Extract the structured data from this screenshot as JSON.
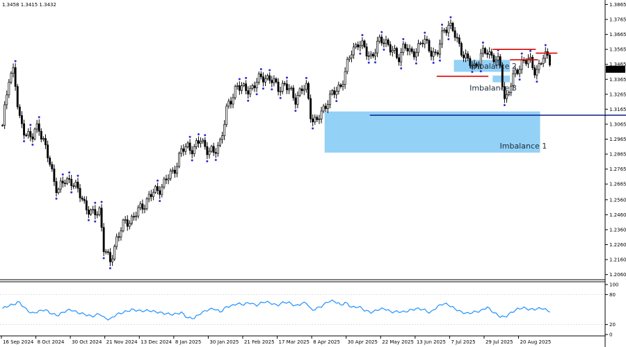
{
  "header": {
    "ohlc": "1.3458 1.3415 1.3432"
  },
  "chart_data": {
    "type": "candlestick",
    "instrument_ohlc": "1.3458 1.3415 1.3432",
    "price_axis": {
      "ticks": [
        "1.3865",
        "1.3765",
        "1.3665",
        "1.3565",
        "1.3465",
        "1.3365",
        "1.3265",
        "1.3165",
        "1.3065",
        "1.2965",
        "1.2865",
        "1.2765",
        "1.2665",
        "1.2560",
        "1.2460",
        "1.2360",
        "1.2260",
        "1.2160",
        "1.2060"
      ],
      "range": [
        1.2035,
        1.3895
      ],
      "current_price": "1.3432"
    },
    "time_axis": {
      "labels": [
        "16 Sep 2024",
        "8 Oct 2024",
        "30 Oct 2024",
        "21 Nov 2024",
        "13 Dec 2024",
        "8 Jan 2025",
        "30 Jan 2025",
        "21 Feb 2025",
        "17 Mar 2025",
        "8 Apr 2025",
        "30 Apr 2025",
        "22 May 2025",
        "13 Jun 2025",
        "7 Jul 2025",
        "29 Jul 2025",
        "20 Aug 2025"
      ],
      "bars_per_label": 16,
      "total_bars": 255
    },
    "close_path": [
      [
        0,
        1.304
      ],
      [
        8,
        1.339
      ],
      [
        14,
        1.343
      ],
      [
        20,
        1.31
      ],
      [
        28,
        1.302
      ],
      [
        36,
        1.296
      ],
      [
        44,
        1.307
      ],
      [
        52,
        1.292
      ],
      [
        60,
        1.276
      ],
      [
        68,
        1.262
      ],
      [
        76,
        1.268
      ],
      [
        84,
        1.27
      ],
      [
        92,
        1.262
      ],
      [
        100,
        1.255
      ],
      [
        110,
        1.245
      ],
      [
        120,
        1.25
      ],
      [
        124,
        1.225
      ],
      [
        132,
        1.213
      ],
      [
        140,
        1.23
      ],
      [
        150,
        1.24
      ],
      [
        160,
        1.244
      ],
      [
        170,
        1.25
      ],
      [
        180,
        1.258
      ],
      [
        190,
        1.262
      ],
      [
        200,
        1.268
      ],
      [
        210,
        1.275
      ],
      [
        220,
        1.288
      ],
      [
        228,
        1.292
      ],
      [
        236,
        1.29
      ],
      [
        244,
        1.296
      ],
      [
        252,
        1.29
      ],
      [
        260,
        1.286
      ],
      [
        268,
        1.296
      ],
      [
        276,
        1.316
      ],
      [
        282,
        1.323
      ],
      [
        288,
        1.334
      ],
      [
        296,
        1.329
      ],
      [
        304,
        1.33
      ],
      [
        312,
        1.334
      ],
      [
        322,
        1.339
      ],
      [
        330,
        1.336
      ],
      [
        338,
        1.331
      ],
      [
        346,
        1.333
      ],
      [
        354,
        1.328
      ],
      [
        360,
        1.324
      ],
      [
        368,
        1.329
      ],
      [
        374,
        1.331
      ],
      [
        380,
        1.311
      ],
      [
        386,
        1.307
      ],
      [
        394,
        1.316
      ],
      [
        400,
        1.323
      ],
      [
        408,
        1.327
      ],
      [
        416,
        1.333
      ],
      [
        422,
        1.342
      ],
      [
        430,
        1.356
      ],
      [
        438,
        1.362
      ],
      [
        446,
        1.355
      ],
      [
        454,
        1.352
      ],
      [
        462,
        1.36
      ],
      [
        470,
        1.364
      ],
      [
        478,
        1.356
      ],
      [
        486,
        1.35
      ],
      [
        494,
        1.36
      ],
      [
        502,
        1.352
      ],
      [
        510,
        1.358
      ],
      [
        518,
        1.362
      ],
      [
        526,
        1.357
      ],
      [
        534,
        1.351
      ],
      [
        542,
        1.369
      ],
      [
        548,
        1.374
      ],
      [
        556,
        1.366
      ],
      [
        564,
        1.357
      ],
      [
        572,
        1.348
      ],
      [
        580,
        1.345
      ],
      [
        588,
        1.352
      ],
      [
        596,
        1.355
      ],
      [
        604,
        1.352
      ],
      [
        612,
        1.345
      ],
      [
        618,
        1.322
      ],
      [
        624,
        1.332
      ],
      [
        632,
        1.341
      ],
      [
        640,
        1.35
      ],
      [
        648,
        1.348
      ],
      [
        656,
        1.342
      ],
      [
        664,
        1.35
      ],
      [
        672,
        1.352
      ],
      [
        678,
        1.342
      ]
    ],
    "rsi": {
      "ticks": [
        "100",
        "80",
        "20",
        "0"
      ],
      "levels": [
        80,
        20
      ],
      "path": [
        [
          0,
          52
        ],
        [
          8,
          58
        ],
        [
          14,
          60
        ],
        [
          20,
          66
        ],
        [
          28,
          52
        ],
        [
          36,
          42
        ],
        [
          44,
          46
        ],
        [
          52,
          50
        ],
        [
          60,
          42
        ],
        [
          68,
          38
        ],
        [
          76,
          46
        ],
        [
          84,
          50
        ],
        [
          92,
          44
        ],
        [
          100,
          41
        ],
        [
          110,
          36
        ],
        [
          120,
          42
        ],
        [
          124,
          34
        ],
        [
          132,
          30
        ],
        [
          140,
          40
        ],
        [
          150,
          45
        ],
        [
          160,
          50
        ],
        [
          170,
          47
        ],
        [
          180,
          48
        ],
        [
          190,
          45
        ],
        [
          200,
          42
        ],
        [
          210,
          40
        ],
        [
          220,
          44
        ],
        [
          228,
          33
        ],
        [
          236,
          33
        ],
        [
          244,
          43
        ],
        [
          252,
          49
        ],
        [
          260,
          52
        ],
        [
          268,
          45
        ],
        [
          276,
          56
        ],
        [
          282,
          57
        ],
        [
          288,
          62
        ],
        [
          296,
          60
        ],
        [
          304,
          64
        ],
        [
          312,
          58
        ],
        [
          322,
          66
        ],
        [
          330,
          63
        ],
        [
          338,
          58
        ],
        [
          346,
          65
        ],
        [
          354,
          63
        ],
        [
          360,
          57
        ],
        [
          368,
          62
        ],
        [
          374,
          64
        ],
        [
          380,
          48
        ],
        [
          386,
          52
        ],
        [
          394,
          58
        ],
        [
          400,
          66
        ],
        [
          408,
          67
        ],
        [
          416,
          59
        ],
        [
          422,
          64
        ],
        [
          430,
          54
        ],
        [
          438,
          56
        ],
        [
          446,
          48
        ],
        [
          454,
          44
        ],
        [
          462,
          50
        ],
        [
          470,
          52
        ],
        [
          478,
          45
        ],
        [
          486,
          46
        ],
        [
          494,
          45
        ],
        [
          502,
          49
        ],
        [
          510,
          52
        ],
        [
          518,
          50
        ],
        [
          526,
          43
        ],
        [
          534,
          55
        ],
        [
          542,
          62
        ],
        [
          548,
          60
        ],
        [
          556,
          52
        ],
        [
          564,
          45
        ],
        [
          572,
          42
        ],
        [
          580,
          45
        ],
        [
          588,
          47
        ],
        [
          596,
          55
        ],
        [
          604,
          44
        ],
        [
          612,
          36
        ],
        [
          618,
          35
        ],
        [
          624,
          42
        ],
        [
          632,
          50
        ],
        [
          640,
          54
        ],
        [
          648,
          50
        ],
        [
          656,
          51
        ],
        [
          664,
          53
        ],
        [
          672,
          46
        ],
        [
          678,
          50
        ]
      ]
    },
    "annotations": [
      {
        "label": "Imbalance 1",
        "zone": [
          1.2875,
          1.315
        ],
        "from_bar": 150,
        "to_bar": 250
      },
      {
        "label": "Imbalance 2",
        "zone": [
          1.3415,
          1.3495
        ],
        "from_bar": 210,
        "to_bar": 236
      },
      {
        "label": "Imbalance 3",
        "zone": [
          1.3345,
          1.339
        ],
        "from_bar": 228,
        "to_bar": 236
      }
    ],
    "levels": [
      {
        "price": 1.3565,
        "from_bar": 228,
        "to_bar": 248,
        "color": "#e00000"
      },
      {
        "price": 1.354,
        "from_bar": 248,
        "to_bar": 258,
        "color": "#e00000"
      },
      {
        "price": 1.3495,
        "from_bar": 236,
        "to_bar": 249,
        "color": "#e00000"
      },
      {
        "price": 1.3385,
        "from_bar": 202,
        "to_bar": 226,
        "color": "#e00000"
      },
      {
        "price": 1.3125,
        "from_bar": 171,
        "to_bar": 293,
        "color": "#0a1a8a"
      }
    ],
    "colors": {
      "candle": "#000000",
      "zone": "#8ecff5",
      "rsi": "#1e90ff",
      "resistance": "#e00000",
      "support": "#0a1a8a",
      "fractal": "#2b2bd6"
    }
  }
}
